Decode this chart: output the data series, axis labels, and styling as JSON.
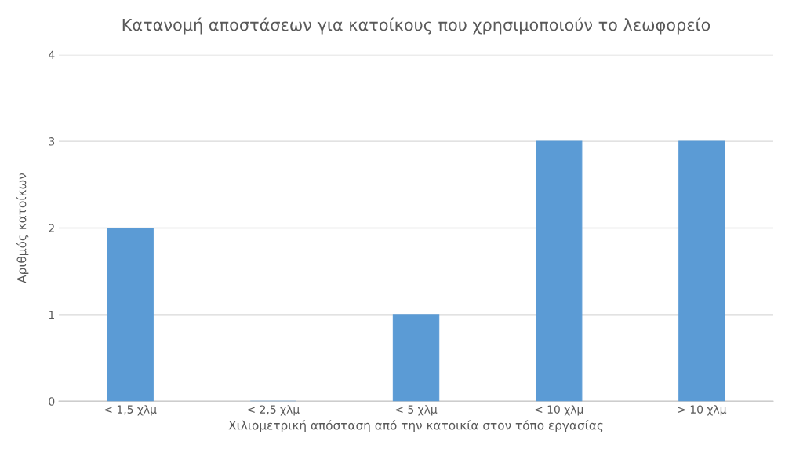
{
  "chart_data": {
    "type": "bar",
    "title": "Κατανομή αποστάσεων για κατοίκους που χρησιμοποιούν το λεωφορείο",
    "xlabel": "Χιλιομετρική απόσταση από την κατοικία στον τόπο εργασίας",
    "ylabel": "Αριθμός κατοίκων",
    "categories": [
      "< 1,5 χλμ",
      "< 2,5 χλμ",
      "< 5 χλμ",
      "< 10 χλμ",
      "> 10 χλμ"
    ],
    "values": [
      2,
      0,
      1,
      3,
      3
    ],
    "color": "#5b9bd5",
    "ylim": [
      0,
      4
    ],
    "yticks": [
      0,
      1,
      2,
      3,
      4
    ],
    "grid": "y",
    "legend": false
  }
}
